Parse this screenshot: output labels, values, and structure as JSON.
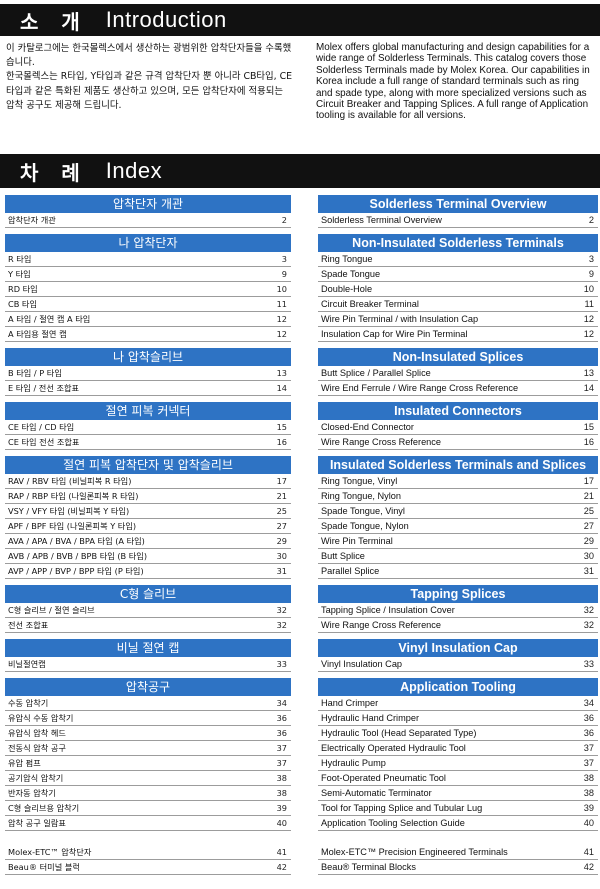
{
  "intro": {
    "ko_title": "소 개",
    "en_title": "Introduction",
    "ko_paragraphs": [
      "이 카탈로그에는 한국몰렉스에서 생산하는 광범위한 압착단자들을 수록했습니다.",
      "한국몰렉스는 R타입, Y타입과 같은 규격 압착단자 뿐 아니라 CB타입, CE타입과 같은 특화된 제품도 생산하고 있으며, 모든 압착단자에 적용되는 압착 공구도 제공해 드립니다."
    ],
    "en_paragraph": "Molex offers global manufacturing and design capabilities for a wide range of Solderless Terminals. This catalog covers those Solderless Terminals made by Molex Korea. Our capabilities in Korea include a full range of standard terminals such as ring and spade type, along with more specialized versions such as Circuit Breaker and Tapping Splices. A full range of Application tooling is available for all versions."
  },
  "index": {
    "ko_title": "차 례",
    "en_title": "Index"
  },
  "left_sections": [
    {
      "title": "압착단자 개관",
      "items": [
        {
          "label": "압착단자 개관",
          "page": "2"
        }
      ]
    },
    {
      "title": "나 압착단자",
      "items": [
        {
          "label": "R 타입",
          "page": "3"
        },
        {
          "label": "Y 타입",
          "page": "9"
        },
        {
          "label": "RD 타입",
          "page": "10"
        },
        {
          "label": "CB 타입",
          "page": "11"
        },
        {
          "label": "A 타입 / 절연 캡 A 타입",
          "page": "12"
        },
        {
          "label": "A 타입용 절연 캡",
          "page": "12"
        }
      ]
    },
    {
      "title": "나 압착슬리브",
      "items": [
        {
          "label": "B 타입 / P 타입",
          "page": "13"
        },
        {
          "label": "E 타입 / 전선 조합표",
          "page": "14"
        }
      ]
    },
    {
      "title": "절연 피복 커넥터",
      "items": [
        {
          "label": "CE 타입 / CD 타입",
          "page": "15"
        },
        {
          "label": "CE 타입 전선 조합표",
          "page": "16"
        }
      ]
    },
    {
      "title": "절연 피복 압착단자 및 압착슬리브",
      "items": [
        {
          "label": "RAV / RBV 타입 (비닐피복 R 타입)",
          "page": "17"
        },
        {
          "label": "RAP / RBP 타입 (나일론피복 R 타입)",
          "page": "21"
        },
        {
          "label": "VSY / VFY 타입 (비닐피복 Y 타입)",
          "page": "25"
        },
        {
          "label": "APF / BPF 타입 (나일론피복 Y 타입)",
          "page": "27"
        },
        {
          "label": "AVA / APA / BVA / BPA 타입 (A 타입)",
          "page": "29"
        },
        {
          "label": "AVB / APB / BVB / BPB 타입 (B 타입)",
          "page": "30"
        },
        {
          "label": "AVP / APP / BVP / BPP 타입 (P 타입)",
          "page": "31"
        }
      ]
    },
    {
      "title": "C형 슬리브",
      "items": [
        {
          "label": "C형 슬리브 / 절연 슬리브",
          "page": "32"
        },
        {
          "label": "전선 조합표",
          "page": "32"
        }
      ]
    },
    {
      "title": "비닐 절연 캡",
      "items": [
        {
          "label": "비닐절연캡",
          "page": "33"
        }
      ]
    },
    {
      "title": "압착공구",
      "items": [
        {
          "label": "수동 압착기",
          "page": "34"
        },
        {
          "label": "유압식 수동 압착기",
          "page": "36"
        },
        {
          "label": "유압식 압착 헤드",
          "page": "36"
        },
        {
          "label": "전동식 압착 공구",
          "page": "37"
        },
        {
          "label": "유압 펌프",
          "page": "37"
        },
        {
          "label": "공기압식 압착기",
          "page": "38"
        },
        {
          "label": "반자동 압착기",
          "page": "38"
        },
        {
          "label": "C형 슬리브용 압착기",
          "page": "39"
        },
        {
          "label": "압착 공구 일람표",
          "page": "40"
        }
      ]
    },
    {
      "title": "",
      "items": [
        {
          "label": "Molex-ETC™ 압착단자",
          "page": "41"
        },
        {
          "label": "Beau® 터미널 블럭",
          "page": "42"
        }
      ]
    }
  ],
  "right_sections": [
    {
      "title": "Solderless Terminal Overview",
      "items": [
        {
          "label": "Solderless Terminal Overview",
          "page": "2"
        }
      ]
    },
    {
      "title": "Non-Insulated Solderless Terminals",
      "items": [
        {
          "label": "Ring Tongue",
          "page": "3"
        },
        {
          "label": "Spade Tongue",
          "page": "9"
        },
        {
          "label": "Double-Hole",
          "page": "10"
        },
        {
          "label": "Circuit Breaker Terminal",
          "page": "11"
        },
        {
          "label": "Wire Pin Terminal / with Insulation Cap",
          "page": "12"
        },
        {
          "label": "Insulation Cap for Wire Pin Terminal",
          "page": "12"
        }
      ]
    },
    {
      "title": "Non-Insulated Splices",
      "items": [
        {
          "label": "Butt Splice / Parallel Splice",
          "page": "13"
        },
        {
          "label": "Wire End Ferrule / Wire Range Cross Reference",
          "page": "14"
        }
      ]
    },
    {
      "title": "Insulated Connectors",
      "items": [
        {
          "label": "Closed-End Connector",
          "page": "15"
        },
        {
          "label": "Wire Range Cross Reference",
          "page": "16"
        }
      ]
    },
    {
      "title": "Insulated Solderless Terminals and Splices",
      "items": [
        {
          "label": "Ring Tongue, Vinyl",
          "page": "17"
        },
        {
          "label": "Ring Tongue, Nylon",
          "page": "21"
        },
        {
          "label": "Spade Tongue, Vinyl",
          "page": "25"
        },
        {
          "label": "Spade Tongue, Nylon",
          "page": "27"
        },
        {
          "label": "Wire Pin Terminal",
          "page": "29"
        },
        {
          "label": "Butt Splice",
          "page": "30"
        },
        {
          "label": "Parallel Splice",
          "page": "31"
        }
      ]
    },
    {
      "title": "Tapping Splices",
      "items": [
        {
          "label": "Tapping Splice / Insulation Cover",
          "page": "32"
        },
        {
          "label": "Wire Range Cross Reference",
          "page": "32"
        }
      ]
    },
    {
      "title": "Vinyl Insulation Cap",
      "items": [
        {
          "label": "Vinyl Insulation Cap",
          "page": "33"
        }
      ]
    },
    {
      "title": "Application Tooling",
      "items": [
        {
          "label": "Hand Crimper",
          "page": "34"
        },
        {
          "label": "Hydraulic Hand Crimper",
          "page": "36"
        },
        {
          "label": "Hydraulic Tool (Head Separated Type)",
          "page": "36"
        },
        {
          "label": "Electrically Operated Hydraulic Tool",
          "page": "37"
        },
        {
          "label": "Hydraulic Pump",
          "page": "37"
        },
        {
          "label": "Foot-Operated Pneumatic Tool",
          "page": "38"
        },
        {
          "label": "Semi-Automatic Terminator",
          "page": "38"
        },
        {
          "label": "Tool for Tapping Splice and Tubular Lug",
          "page": "39"
        },
        {
          "label": "Application Tooling Selection Guide",
          "page": "40"
        }
      ]
    },
    {
      "title": "",
      "items": [
        {
          "label": "Molex-ETC™ Precision Engineered Terminals",
          "page": "41"
        },
        {
          "label": "Beau® Terminal Blocks",
          "page": "42"
        }
      ]
    }
  ]
}
